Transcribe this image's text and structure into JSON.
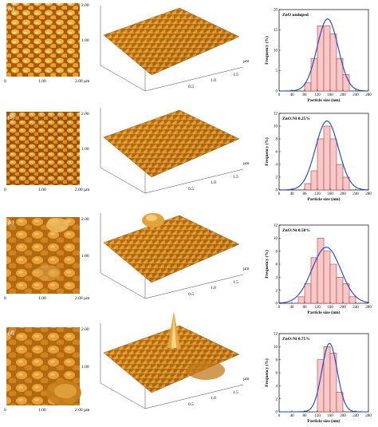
{
  "colors": {
    "afm_dark": "#7a3d00",
    "afm_mid": "#c8730f",
    "afm_light": "#f7c65a",
    "bar_fill": "#f5c9c9",
    "bar_edge": "#c0392b",
    "fit_line": "#1a3fd1"
  },
  "afm_ticks": {
    "zero": "0",
    "one": "1.00",
    "two": "2.00",
    "two_um": "2.00 µm",
    "one_um": "1.00 µm",
    "p5": "0.5",
    "p10": "1.0",
    "p15": "1.5",
    "um": "µm"
  },
  "chart_data": [
    {
      "type": "bar",
      "panel": "(a)",
      "title": "ZnO undoped",
      "xlabel": "Particle size (nm)",
      "ylabel": "Frequency (%)",
      "xlim": [
        0,
        280
      ],
      "ylim": [
        0,
        20
      ],
      "xticks": [
        0,
        40,
        80,
        120,
        160,
        200,
        240,
        280
      ],
      "yticks": [
        0,
        5,
        10,
        15,
        20
      ],
      "bin_width": 20,
      "bins": [
        {
          "x": 90,
          "y": 2
        },
        {
          "x": 110,
          "y": 8
        },
        {
          "x": 130,
          "y": 16
        },
        {
          "x": 150,
          "y": 16
        },
        {
          "x": 170,
          "y": 14
        },
        {
          "x": 190,
          "y": 8
        },
        {
          "x": 210,
          "y": 4
        }
      ],
      "fit": {
        "mean": 152,
        "sd": 33,
        "peak": 17.7
      }
    },
    {
      "type": "bar",
      "panel": "(b)",
      "title": "ZnO:Ni 0.25%",
      "xlabel": "Particle size (nm)",
      "ylabel": "Frequency (%)",
      "xlim": [
        0,
        280
      ],
      "ylim": [
        0,
        12
      ],
      "xticks": [
        0,
        40,
        80,
        120,
        160,
        200,
        240,
        280
      ],
      "yticks": [
        0,
        2,
        4,
        6,
        8,
        10,
        12
      ],
      "bin_width": 20,
      "bins": [
        {
          "x": 90,
          "y": 1
        },
        {
          "x": 110,
          "y": 3
        },
        {
          "x": 130,
          "y": 8
        },
        {
          "x": 150,
          "y": 10
        },
        {
          "x": 170,
          "y": 8
        },
        {
          "x": 190,
          "y": 4
        },
        {
          "x": 210,
          "y": 2
        }
      ],
      "fit": {
        "mean": 150,
        "sd": 36,
        "peak": 10.8
      }
    },
    {
      "type": "bar",
      "panel": "(c)",
      "title": "ZnO:Ni 0.50%",
      "xlabel": "Particle size (nm)",
      "ylabel": "Frequency (%)",
      "xlim": [
        0,
        280
      ],
      "ylim": [
        0,
        12
      ],
      "xticks": [
        0,
        40,
        80,
        120,
        160,
        200,
        240,
        280
      ],
      "yticks": [
        0,
        2,
        4,
        6,
        8,
        10,
        12
      ],
      "bin_width": 20,
      "bins": [
        {
          "x": 70,
          "y": 1
        },
        {
          "x": 90,
          "y": 3
        },
        {
          "x": 110,
          "y": 7
        },
        {
          "x": 130,
          "y": 10
        },
        {
          "x": 150,
          "y": 8
        },
        {
          "x": 170,
          "y": 6
        },
        {
          "x": 190,
          "y": 4
        },
        {
          "x": 210,
          "y": 3
        },
        {
          "x": 230,
          "y": 1
        }
      ],
      "fit": {
        "mean": 148,
        "sd": 45,
        "peak": 8.6
      }
    },
    {
      "type": "bar",
      "panel": "(d)",
      "title": "ZnO:Ni 0.75%",
      "xlabel": "Particle size (nm)",
      "ylabel": "Frequency (%)",
      "xlim": [
        0,
        280
      ],
      "ylim": [
        0,
        12
      ],
      "xticks": [
        0,
        40,
        80,
        120,
        160,
        200,
        240,
        280
      ],
      "yticks": [
        0,
        2,
        4,
        6,
        8,
        10,
        12
      ],
      "bin_width": 20,
      "bins": [
        {
          "x": 130,
          "y": 8
        },
        {
          "x": 150,
          "y": 10
        },
        {
          "x": 170,
          "y": 9
        },
        {
          "x": 190,
          "y": 3
        }
      ],
      "fit": {
        "mean": 158,
        "sd": 24,
        "peak": 10.5
      }
    }
  ],
  "afm_panels": [
    {
      "label": "(a)"
    },
    {
      "label": "(b)"
    },
    {
      "label": "(c)"
    },
    {
      "label": "(d)"
    }
  ]
}
